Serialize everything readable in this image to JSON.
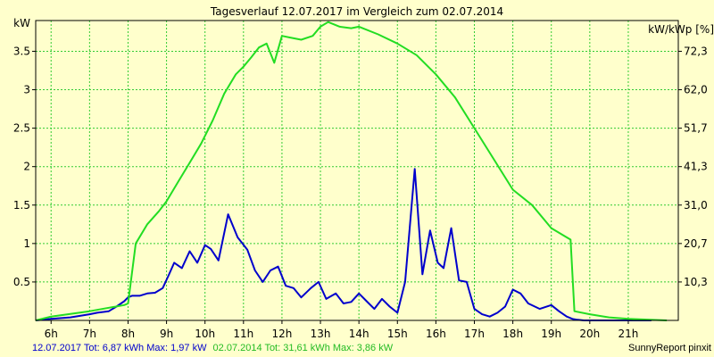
{
  "chart_data": {
    "type": "line",
    "title": "Tagesverlauf 12.07.2017 im Vergleich zum 02.07.2014",
    "ylabel": "kW",
    "ylabel_right": "kW/kWp [%]",
    "ylim": [
      0,
      3.9
    ],
    "x_unit": "hours",
    "xlim": [
      5.6,
      22.3
    ],
    "x_ticks": [
      {
        "value": 6,
        "label": "6h"
      },
      {
        "value": 7,
        "label": "7h"
      },
      {
        "value": 8,
        "label": "8h"
      },
      {
        "value": 9,
        "label": "9h"
      },
      {
        "value": 10,
        "label": "10h"
      },
      {
        "value": 11,
        "label": "11h"
      },
      {
        "value": 12,
        "label": "12h"
      },
      {
        "value": 13,
        "label": "13h"
      },
      {
        "value": 14,
        "label": "14h"
      },
      {
        "value": 15,
        "label": "15h"
      },
      {
        "value": 16,
        "label": "16h"
      },
      {
        "value": 17,
        "label": "17h"
      },
      {
        "value": 18,
        "label": "18h"
      },
      {
        "value": 19,
        "label": "19h"
      },
      {
        "value": 20,
        "label": "20h"
      },
      {
        "value": 21,
        "label": "21h"
      }
    ],
    "y_ticks": [
      {
        "value": 0.5,
        "label": "0.5"
      },
      {
        "value": 1,
        "label": "1"
      },
      {
        "value": 1.5,
        "label": "1.5"
      },
      {
        "value": 2,
        "label": "2"
      },
      {
        "value": 2.5,
        "label": "2.5"
      },
      {
        "value": 3,
        "label": "3"
      },
      {
        "value": 3.5,
        "label": "3.5"
      }
    ],
    "y_ticks_right": [
      {
        "value": 0.5,
        "label": "10,3"
      },
      {
        "value": 1,
        "label": "20,7"
      },
      {
        "value": 1.5,
        "label": "31,0"
      },
      {
        "value": 2,
        "label": "41,3"
      },
      {
        "value": 2.5,
        "label": "51,7"
      },
      {
        "value": 3,
        "label": "62,0"
      },
      {
        "value": 3.5,
        "label": "72,3"
      }
    ],
    "grid": true,
    "series": [
      {
        "name": "12.07.2017",
        "color": "#0000cc",
        "x": [
          5.6,
          6.0,
          6.5,
          7.0,
          7.2,
          7.5,
          7.7,
          7.9,
          8.0,
          8.1,
          8.3,
          8.5,
          8.7,
          8.9,
          9.05,
          9.2,
          9.4,
          9.6,
          9.8,
          10.0,
          10.15,
          10.35,
          10.6,
          10.85,
          11.1,
          11.3,
          11.5,
          11.7,
          11.9,
          12.1,
          12.3,
          12.5,
          12.75,
          12.95,
          13.15,
          13.4,
          13.6,
          13.8,
          14.0,
          14.2,
          14.4,
          14.6,
          14.8,
          15.0,
          15.2,
          15.45,
          15.65,
          15.85,
          16.05,
          16.2,
          16.4,
          16.6,
          16.8,
          17.0,
          17.2,
          17.4,
          17.6,
          17.8,
          18.0,
          18.2,
          18.4,
          18.7,
          19.0,
          19.2,
          19.4,
          19.55,
          19.65,
          19.85,
          20.0,
          20.2,
          20.5,
          20.7,
          20.9,
          21.2,
          21.4,
          21.6
        ],
        "y": [
          0.0,
          0.02,
          0.04,
          0.08,
          0.1,
          0.12,
          0.18,
          0.25,
          0.3,
          0.32,
          0.32,
          0.35,
          0.36,
          0.42,
          0.58,
          0.75,
          0.68,
          0.9,
          0.75,
          0.98,
          0.93,
          0.78,
          1.38,
          1.08,
          0.92,
          0.65,
          0.5,
          0.65,
          0.7,
          0.45,
          0.42,
          0.3,
          0.42,
          0.5,
          0.28,
          0.35,
          0.22,
          0.24,
          0.35,
          0.25,
          0.15,
          0.28,
          0.18,
          0.1,
          0.5,
          1.97,
          0.6,
          1.17,
          0.75,
          0.68,
          1.2,
          0.52,
          0.5,
          0.15,
          0.08,
          0.05,
          0.1,
          0.18,
          0.4,
          0.35,
          0.22,
          0.15,
          0.2,
          0.12,
          0.05,
          0.02,
          0.01,
          0.0,
          0.0,
          0.0,
          0.0,
          0.0,
          0.0,
          0.0,
          0.0,
          0.0
        ]
      },
      {
        "name": "02.07.2014",
        "color": "#22dd22",
        "x": [
          5.6,
          6.0,
          7.0,
          7.9,
          8.0,
          8.2,
          8.5,
          8.8,
          9.0,
          9.3,
          9.6,
          9.9,
          10.2,
          10.5,
          10.8,
          11.0,
          11.2,
          11.4,
          11.6,
          11.8,
          12.0,
          12.2,
          12.5,
          12.8,
          13.0,
          13.2,
          13.5,
          13.8,
          14.0,
          14.5,
          15.0,
          15.5,
          16.0,
          16.5,
          17.0,
          17.5,
          18.0,
          18.5,
          19.0,
          19.5,
          19.6,
          20.0,
          20.5,
          21.0,
          21.5,
          22.0
        ],
        "y": [
          0.0,
          0.05,
          0.12,
          0.2,
          0.22,
          1.0,
          1.25,
          1.42,
          1.55,
          1.8,
          2.05,
          2.3,
          2.6,
          2.95,
          3.2,
          3.3,
          3.42,
          3.55,
          3.6,
          3.35,
          3.7,
          3.68,
          3.65,
          3.7,
          3.82,
          3.88,
          3.82,
          3.8,
          3.82,
          3.72,
          3.6,
          3.45,
          3.2,
          2.9,
          2.5,
          2.1,
          1.7,
          1.5,
          1.2,
          1.05,
          0.12,
          0.08,
          0.04,
          0.02,
          0.01,
          0.0
        ]
      }
    ]
  },
  "footer": {
    "s1_text": "12.07.2017 Tot: 6,87 kWh Max: 1,97 kW",
    "s2_text": "02.07.2014 Tot: 31,61 kWh Max: 3,86 kW",
    "brand": "SunnyReport pinxit"
  }
}
